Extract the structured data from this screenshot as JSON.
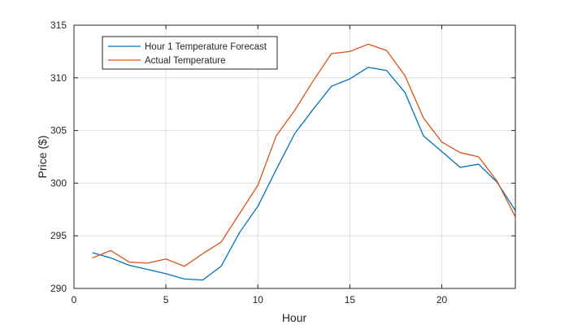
{
  "chart_data": {
    "type": "line",
    "title": "",
    "xlabel": "Hour",
    "ylabel": "Price ($)",
    "xlim": [
      0,
      24
    ],
    "ylim": [
      290,
      315
    ],
    "xticks": [
      0,
      5,
      10,
      15,
      20
    ],
    "yticks": [
      290,
      295,
      300,
      305,
      310,
      315
    ],
    "grid": true,
    "legend_position": "top-left",
    "x": [
      1,
      2,
      3,
      4,
      5,
      6,
      7,
      8,
      9,
      10,
      11,
      12,
      13,
      14,
      15,
      16,
      17,
      18,
      19,
      20,
      21,
      22,
      23,
      24
    ],
    "series": [
      {
        "name": "Hour 1 Temperature Forecast",
        "color": "#0072BD",
        "values": [
          293.4,
          292.9,
          292.2,
          291.8,
          291.4,
          290.9,
          290.8,
          292.1,
          295.3,
          297.8,
          301.3,
          304.7,
          307.0,
          309.2,
          309.9,
          311.0,
          310.7,
          308.6,
          304.5,
          303.0,
          301.5,
          301.8,
          300.1,
          297.4
        ]
      },
      {
        "name": "Actual Temperature",
        "color": "#D95319",
        "values": [
          292.9,
          293.6,
          292.5,
          292.4,
          292.8,
          292.1,
          293.3,
          294.4,
          297.1,
          299.8,
          304.5,
          306.9,
          309.7,
          312.3,
          312.5,
          313.2,
          312.6,
          310.2,
          306.2,
          303.9,
          302.9,
          302.5,
          300.2,
          296.8
        ]
      }
    ]
  }
}
